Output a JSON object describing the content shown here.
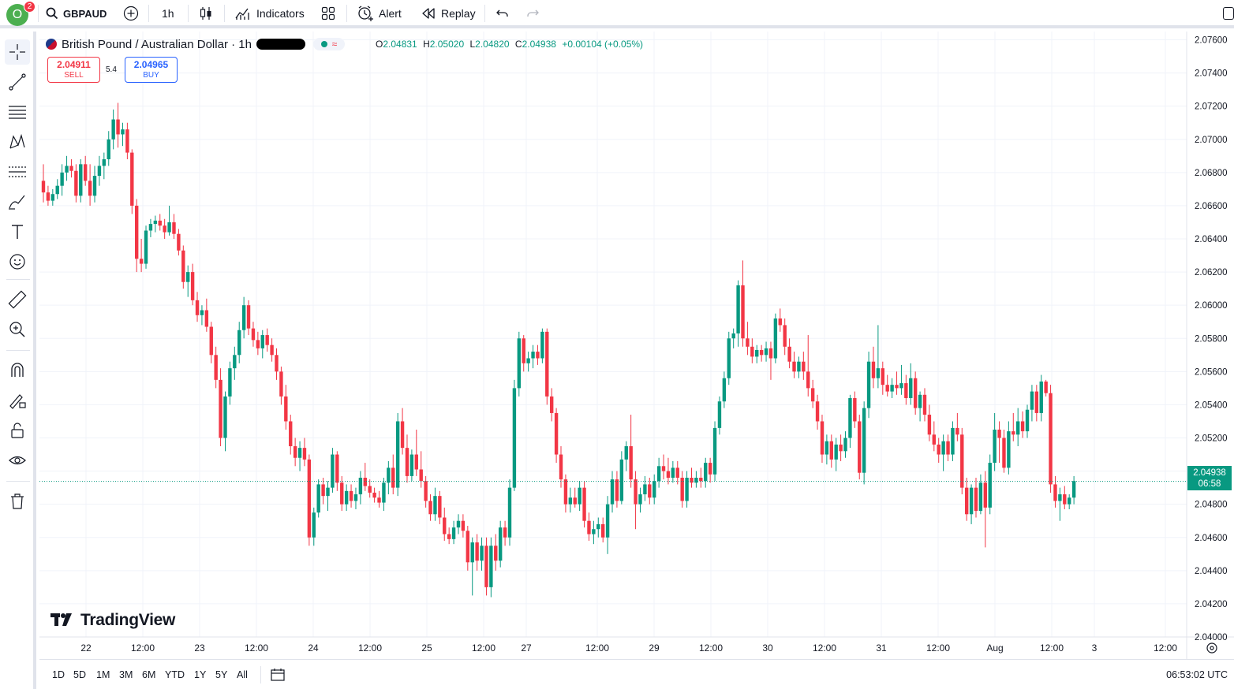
{
  "topbar": {
    "avatar_letter": "O",
    "notification_count": "2",
    "symbol": "GBPAUD",
    "interval": "1h",
    "indicators_label": "Indicators",
    "alert_label": "Alert",
    "replay_label": "Replay"
  },
  "legend": {
    "title": "British Pound / Australian Dollar · 1h",
    "open_key": "O",
    "open": "2.04831",
    "high_key": "H",
    "high": "2.05020",
    "low_key": "L",
    "low": "2.04820",
    "close_key": "C",
    "close": "2.04938",
    "change": "+0.00104 (+0.05%)"
  },
  "trade": {
    "sell_price": "2.04911",
    "sell_label": "SELL",
    "spread": "5.4",
    "buy_price": "2.04965",
    "buy_label": "BUY"
  },
  "price_scale": {
    "ticks": [
      "2.07600",
      "2.07400",
      "2.07200",
      "2.07000",
      "2.06800",
      "2.06600",
      "2.06400",
      "2.06200",
      "2.06000",
      "2.05800",
      "2.05600",
      "2.05400",
      "2.05200",
      "2.05000",
      "2.04800",
      "2.04600",
      "2.04400",
      "2.04200",
      "2.04000"
    ],
    "current_price": "2.04938",
    "countdown": "06:58"
  },
  "time_scale": {
    "labels": [
      "22",
      "12:00",
      "23",
      "12:00",
      "24",
      "12:00",
      "25",
      "12:00",
      "27",
      "12:00",
      "29",
      "12:00",
      "30",
      "12:00",
      "31",
      "12:00",
      "Aug",
      "12:00",
      "3",
      "12:00"
    ]
  },
  "colors": {
    "up": "#089981",
    "down": "#f23645",
    "grid": "#f0f3fa",
    "price_line": "#089981"
  },
  "chart_data": {
    "type": "candlestick",
    "symbol": "GBPAUD",
    "interval": "1h",
    "ylim": [
      2.04,
      2.0765
    ],
    "grid": true,
    "candles": [
      [
        2.0675,
        2.0685,
        2.0662,
        2.0668
      ],
      [
        2.0668,
        2.0672,
        2.066,
        2.0663
      ],
      [
        2.0663,
        2.067,
        2.066,
        2.0667
      ],
      [
        2.0667,
        2.0676,
        2.0664,
        2.0672
      ],
      [
        2.0672,
        2.0685,
        2.0666,
        2.068
      ],
      [
        2.068,
        2.069,
        2.0675,
        2.0684
      ],
      [
        2.0684,
        2.0688,
        2.0677,
        2.0681
      ],
      [
        2.0681,
        2.0685,
        2.0662,
        2.0666
      ],
      [
        2.0666,
        2.0688,
        2.0662,
        2.0685
      ],
      [
        2.0685,
        2.069,
        2.0672,
        2.0675
      ],
      [
        2.0675,
        2.0685,
        2.066,
        2.0666
      ],
      [
        2.0666,
        2.0684,
        2.0662,
        2.0678
      ],
      [
        2.0678,
        2.069,
        2.0672,
        2.0684
      ],
      [
        2.0684,
        2.0692,
        2.0676,
        2.0688
      ],
      [
        2.0688,
        2.0705,
        2.0684,
        2.07
      ],
      [
        2.07,
        2.0718,
        2.0694,
        2.0712
      ],
      [
        2.0712,
        2.0722,
        2.0695,
        2.0703
      ],
      [
        2.0703,
        2.071,
        2.0696,
        2.0706
      ],
      [
        2.0706,
        2.071,
        2.0688,
        2.0692
      ],
      [
        2.0692,
        2.0694,
        2.0655,
        2.066
      ],
      [
        2.066,
        2.0664,
        2.062,
        2.0628
      ],
      [
        2.0628,
        2.064,
        2.062,
        2.0625
      ],
      [
        2.0625,
        2.0648,
        2.0622,
        2.0645
      ],
      [
        2.0645,
        2.0652,
        2.0641,
        2.0649
      ],
      [
        2.0649,
        2.0654,
        2.0644,
        2.0651
      ],
      [
        2.0651,
        2.0655,
        2.0645,
        2.0648
      ],
      [
        2.0648,
        2.0652,
        2.064,
        2.0644
      ],
      [
        2.0644,
        2.066,
        2.0642,
        2.065
      ],
      [
        2.065,
        2.0655,
        2.064,
        2.0643
      ],
      [
        2.0643,
        2.0646,
        2.063,
        2.0633
      ],
      [
        2.0633,
        2.0636,
        2.061,
        2.0614
      ],
      [
        2.0614,
        2.0624,
        2.0605,
        2.062
      ],
      [
        2.062,
        2.0625,
        2.06,
        2.0603
      ],
      [
        2.0603,
        2.0608,
        2.059,
        2.0594
      ],
      [
        2.0594,
        2.06,
        2.0588,
        2.0597
      ],
      [
        2.0597,
        2.0604,
        2.0584,
        2.0587
      ],
      [
        2.0587,
        2.059,
        2.0565,
        2.057
      ],
      [
        2.057,
        2.0575,
        2.055,
        2.0555
      ],
      [
        2.0555,
        2.0562,
        2.0515,
        2.052
      ],
      [
        2.052,
        2.0548,
        2.0512,
        2.0545
      ],
      [
        2.0545,
        2.0566,
        2.054,
        2.0562
      ],
      [
        2.0562,
        2.0575,
        2.0555,
        2.057
      ],
      [
        2.057,
        2.059,
        2.0565,
        2.0585
      ],
      [
        2.0585,
        2.0605,
        2.058,
        2.06
      ],
      [
        2.06,
        2.0603,
        2.0582,
        2.0586
      ],
      [
        2.0586,
        2.059,
        2.0575,
        2.0579
      ],
      [
        2.0579,
        2.0584,
        2.057,
        2.0574
      ],
      [
        2.0574,
        2.0585,
        2.0568,
        2.0582
      ],
      [
        2.0582,
        2.0586,
        2.0572,
        2.0576
      ],
      [
        2.0576,
        2.058,
        2.0566,
        2.057
      ],
      [
        2.057,
        2.0574,
        2.0555,
        2.056
      ],
      [
        2.056,
        2.0563,
        2.054,
        2.0545
      ],
      [
        2.0545,
        2.0552,
        2.0525,
        2.053
      ],
      [
        2.053,
        2.0534,
        2.051,
        2.0515
      ],
      [
        2.0515,
        2.052,
        2.0503,
        2.0508
      ],
      [
        2.0508,
        2.0518,
        2.05,
        2.0514
      ],
      [
        2.0514,
        2.052,
        2.0503,
        2.0507
      ],
      [
        2.0507,
        2.051,
        2.0455,
        2.046
      ],
      [
        2.046,
        2.0478,
        2.0455,
        2.0475
      ],
      [
        2.0475,
        2.0495,
        2.0472,
        2.0492
      ],
      [
        2.0492,
        2.0496,
        2.048,
        2.0485
      ],
      [
        2.0485,
        2.0494,
        2.0476,
        2.049
      ],
      [
        2.049,
        2.0514,
        2.0487,
        2.051
      ],
      [
        2.051,
        2.0512,
        2.0488,
        2.0493
      ],
      [
        2.0493,
        2.0497,
        2.0476,
        2.048
      ],
      [
        2.048,
        2.0492,
        2.0476,
        2.0488
      ],
      [
        2.0488,
        2.0492,
        2.0478,
        2.0482
      ],
      [
        2.0482,
        2.049,
        2.0477,
        2.0486
      ],
      [
        2.0486,
        2.05,
        2.048,
        2.0496
      ],
      [
        2.0496,
        2.0505,
        2.0488,
        2.0491
      ],
      [
        2.0491,
        2.0495,
        2.0484,
        2.0487
      ],
      [
        2.0487,
        2.049,
        2.0481,
        2.0484
      ],
      [
        2.0484,
        2.0488,
        2.0478,
        2.0481
      ],
      [
        2.0481,
        2.0496,
        2.0476,
        2.0493
      ],
      [
        2.0493,
        2.0506,
        2.0486,
        2.0502
      ],
      [
        2.0502,
        2.051,
        2.0486,
        2.049
      ],
      [
        2.049,
        2.0535,
        2.0485,
        2.053
      ],
      [
        2.053,
        2.0538,
        2.051,
        2.0514
      ],
      [
        2.0514,
        2.0522,
        2.0493,
        2.0497
      ],
      [
        2.0497,
        2.0513,
        2.0494,
        2.051
      ],
      [
        2.051,
        2.0525,
        2.0497,
        2.0501
      ],
      [
        2.0501,
        2.0512,
        2.049,
        2.0494
      ],
      [
        2.0494,
        2.0497,
        2.0478,
        2.0482
      ],
      [
        2.0482,
        2.0486,
        2.047,
        2.0474
      ],
      [
        2.0474,
        2.049,
        2.047,
        2.0485
      ],
      [
        2.0485,
        2.0488,
        2.0468,
        2.0472
      ],
      [
        2.0472,
        2.0478,
        2.0458,
        2.0462
      ],
      [
        2.0462,
        2.0466,
        2.0456,
        2.0459
      ],
      [
        2.0459,
        2.047,
        2.0456,
        2.0466
      ],
      [
        2.0466,
        2.0474,
        2.0462,
        2.047
      ],
      [
        2.047,
        2.0474,
        2.046,
        2.0464
      ],
      [
        2.0464,
        2.0467,
        2.044,
        2.0445
      ],
      [
        2.0445,
        2.046,
        2.0425,
        2.0457
      ],
      [
        2.0457,
        2.0462,
        2.044,
        2.0446
      ],
      [
        2.0446,
        2.046,
        2.044,
        2.0455
      ],
      [
        2.0455,
        2.046,
        2.0425,
        2.043
      ],
      [
        2.043,
        2.046,
        2.0424,
        2.0455
      ],
      [
        2.0455,
        2.0462,
        2.044,
        2.0446
      ],
      [
        2.0446,
        2.047,
        2.0442,
        2.0466
      ],
      [
        2.0466,
        2.047,
        2.0455,
        2.046
      ],
      [
        2.046,
        2.0495,
        2.0455,
        2.049
      ],
      [
        2.049,
        2.0555,
        2.0488,
        2.055
      ],
      [
        2.055,
        2.0584,
        2.0545,
        2.058
      ],
      [
        2.058,
        2.0582,
        2.056,
        2.0565
      ],
      [
        2.0565,
        2.0572,
        2.056,
        2.0568
      ],
      [
        2.0568,
        2.0576,
        2.0562,
        2.0572
      ],
      [
        2.0572,
        2.0576,
        2.0564,
        2.0568
      ],
      [
        2.0568,
        2.0586,
        2.0565,
        2.0584
      ],
      [
        2.0584,
        2.0586,
        2.054,
        2.0545
      ],
      [
        2.0545,
        2.055,
        2.053,
        2.0535
      ],
      [
        2.0535,
        2.0538,
        2.0505,
        2.051
      ],
      [
        2.051,
        2.0515,
        2.049,
        2.0495
      ],
      [
        2.0495,
        2.0498,
        2.0475,
        2.048
      ],
      [
        2.048,
        2.049,
        2.0475,
        2.0484
      ],
      [
        2.0484,
        2.049,
        2.0478,
        2.048
      ],
      [
        2.048,
        2.0494,
        2.0476,
        2.049
      ],
      [
        2.049,
        2.0494,
        2.0466,
        2.047
      ],
      [
        2.047,
        2.0475,
        2.0458,
        2.0462
      ],
      [
        2.0462,
        2.047,
        2.0456,
        2.0465
      ],
      [
        2.0465,
        2.0472,
        2.046,
        2.0468
      ],
      [
        2.0468,
        2.0472,
        2.0457,
        2.046
      ],
      [
        2.046,
        2.0485,
        2.045,
        2.048
      ],
      [
        2.048,
        2.05,
        2.0475,
        2.0495
      ],
      [
        2.0495,
        2.05,
        2.0478,
        2.0482
      ],
      [
        2.0482,
        2.0512,
        2.048,
        2.0507
      ],
      [
        2.0507,
        2.0518,
        2.05,
        2.0515
      ],
      [
        2.0515,
        2.0534,
        2.049,
        2.0495
      ],
      [
        2.0495,
        2.05,
        2.0465,
        2.048
      ],
      [
        2.048,
        2.049,
        2.0475,
        2.0486
      ],
      [
        2.0486,
        2.0497,
        2.0482,
        2.0492
      ],
      [
        2.0492,
        2.0496,
        2.048,
        2.0484
      ],
      [
        2.0484,
        2.0498,
        2.048,
        2.0494
      ],
      [
        2.0494,
        2.0508,
        2.049,
        2.0503
      ],
      [
        2.0503,
        2.051,
        2.0495,
        2.05
      ],
      [
        2.05,
        2.0508,
        2.0492,
        2.0496
      ],
      [
        2.0496,
        2.0506,
        2.0493,
        2.0502
      ],
      [
        2.0502,
        2.0506,
        2.0492,
        2.0496
      ],
      [
        2.0496,
        2.05,
        2.0478,
        2.0482
      ],
      [
        2.0482,
        2.05,
        2.0478,
        2.0496
      ],
      [
        2.0496,
        2.0502,
        2.049,
        2.0493
      ],
      [
        2.0493,
        2.05,
        2.049,
        2.0496
      ],
      [
        2.0496,
        2.0502,
        2.049,
        2.0494
      ],
      [
        2.0494,
        2.0508,
        2.049,
        2.0505
      ],
      [
        2.0505,
        2.0508,
        2.0493,
        2.0498
      ],
      [
        2.0498,
        2.053,
        2.0494,
        2.0526
      ],
      [
        2.0526,
        2.0545,
        2.0522,
        2.0542
      ],
      [
        2.0542,
        2.056,
        2.0538,
        2.0556
      ],
      [
        2.0556,
        2.0584,
        2.0552,
        2.058
      ],
      [
        2.058,
        2.0586,
        2.0574,
        2.0583
      ],
      [
        2.0583,
        2.0615,
        2.0575,
        2.0612
      ],
      [
        2.0612,
        2.0627,
        2.0575,
        2.058
      ],
      [
        2.058,
        2.059,
        2.057,
        2.0575
      ],
      [
        2.0575,
        2.058,
        2.0565,
        2.0569
      ],
      [
        2.0569,
        2.0576,
        2.0565,
        2.0573
      ],
      [
        2.0573,
        2.0576,
        2.0566,
        2.057
      ],
      [
        2.057,
        2.0578,
        2.0566,
        2.0574
      ],
      [
        2.0574,
        2.0578,
        2.0555,
        2.0568
      ],
      [
        2.0568,
        2.0595,
        2.0565,
        2.0592
      ],
      [
        2.0592,
        2.0598,
        2.0584,
        2.0588
      ],
      [
        2.0588,
        2.0592,
        2.057,
        2.0575
      ],
      [
        2.0575,
        2.058,
        2.0562,
        2.0566
      ],
      [
        2.0566,
        2.0572,
        2.0556,
        2.056
      ],
      [
        2.056,
        2.0569,
        2.0556,
        2.0566
      ],
      [
        2.0566,
        2.0572,
        2.0555,
        2.056
      ],
      [
        2.056,
        2.0582,
        2.0545,
        2.055
      ],
      [
        2.055,
        2.0555,
        2.0538,
        2.0542
      ],
      [
        2.0542,
        2.0546,
        2.0525,
        2.053
      ],
      [
        2.053,
        2.0534,
        2.0505,
        2.051
      ],
      [
        2.051,
        2.0522,
        2.0504,
        2.0518
      ],
      [
        2.0518,
        2.0522,
        2.0502,
        2.0507
      ],
      [
        2.0507,
        2.052,
        2.05,
        2.0516
      ],
      [
        2.0516,
        2.0522,
        2.0506,
        2.0512
      ],
      [
        2.0512,
        2.0524,
        2.0508,
        2.052
      ],
      [
        2.052,
        2.0546,
        2.0514,
        2.0544
      ],
      [
        2.0544,
        2.0548,
        2.0526,
        2.053
      ],
      [
        2.053,
        2.0534,
        2.0495,
        2.0499
      ],
      [
        2.0499,
        2.0542,
        2.0492,
        2.0538
      ],
      [
        2.0538,
        2.0572,
        2.0532,
        2.0566
      ],
      [
        2.0566,
        2.0575,
        2.055,
        2.0556
      ],
      [
        2.0556,
        2.0588,
        2.055,
        2.0562
      ],
      [
        2.0562,
        2.0566,
        2.0546,
        2.0552
      ],
      [
        2.0552,
        2.0558,
        2.0545,
        2.0548
      ],
      [
        2.0548,
        2.0556,
        2.0544,
        2.0552
      ],
      [
        2.0552,
        2.056,
        2.0546,
        2.055
      ],
      [
        2.055,
        2.0564,
        2.0546,
        2.0553
      ],
      [
        2.0553,
        2.0558,
        2.054,
        2.0544
      ],
      [
        2.0544,
        2.0565,
        2.054,
        2.0556
      ],
      [
        2.0556,
        2.056,
        2.0534,
        2.0538
      ],
      [
        2.0538,
        2.0548,
        2.053,
        2.0546
      ],
      [
        2.0546,
        2.055,
        2.053,
        2.0534
      ],
      [
        2.0534,
        2.054,
        2.0518,
        2.0522
      ],
      [
        2.0522,
        2.053,
        2.0512,
        2.0516
      ],
      [
        2.0516,
        2.052,
        2.0505,
        2.051
      ],
      [
        2.051,
        2.0522,
        2.05,
        2.0518
      ],
      [
        2.0518,
        2.0522,
        2.0506,
        2.051
      ],
      [
        2.051,
        2.053,
        2.0506,
        2.0526
      ],
      [
        2.0526,
        2.0535,
        2.0518,
        2.0522
      ],
      [
        2.0522,
        2.0526,
        2.0486,
        2.049
      ],
      [
        2.049,
        2.0496,
        2.047,
        2.0474
      ],
      [
        2.0474,
        2.0492,
        2.0468,
        2.049
      ],
      [
        2.049,
        2.0496,
        2.0472,
        2.0476
      ],
      [
        2.0476,
        2.0498,
        2.0474,
        2.0493
      ],
      [
        2.0493,
        2.05,
        2.0454,
        2.0478
      ],
      [
        2.0478,
        2.051,
        2.0474,
        2.0505
      ],
      [
        2.0505,
        2.0535,
        2.05,
        2.0525
      ],
      [
        2.0525,
        2.053,
        2.0505,
        2.052
      ],
      [
        2.052,
        2.0525,
        2.0499,
        2.0502
      ],
      [
        2.0502,
        2.053,
        2.0498,
        2.0524
      ],
      [
        2.0524,
        2.0535,
        2.0518,
        2.0522
      ],
      [
        2.0522,
        2.0538,
        2.0515,
        2.053
      ],
      [
        2.053,
        2.0536,
        2.052,
        2.0524
      ],
      [
        2.0524,
        2.054,
        2.052,
        2.0537
      ],
      [
        2.0537,
        2.0552,
        2.053,
        2.0548
      ],
      [
        2.0548,
        2.0552,
        2.053,
        2.0535
      ],
      [
        2.0535,
        2.0558,
        2.053,
        2.0554
      ],
      [
        2.0554,
        2.0555,
        2.0545,
        2.0547
      ],
      [
        2.0547,
        2.0552,
        2.0487,
        2.0492
      ],
      [
        2.0492,
        2.0497,
        2.0478,
        2.0482
      ],
      [
        2.0482,
        2.049,
        2.047,
        2.0486
      ],
      [
        2.0486,
        2.0491,
        2.0477,
        2.048
      ],
      [
        2.048,
        2.0486,
        2.0477,
        2.0484
      ],
      [
        2.0484,
        2.0497,
        2.048,
        2.0494
      ]
    ],
    "last_price": 2.04938
  }
}
